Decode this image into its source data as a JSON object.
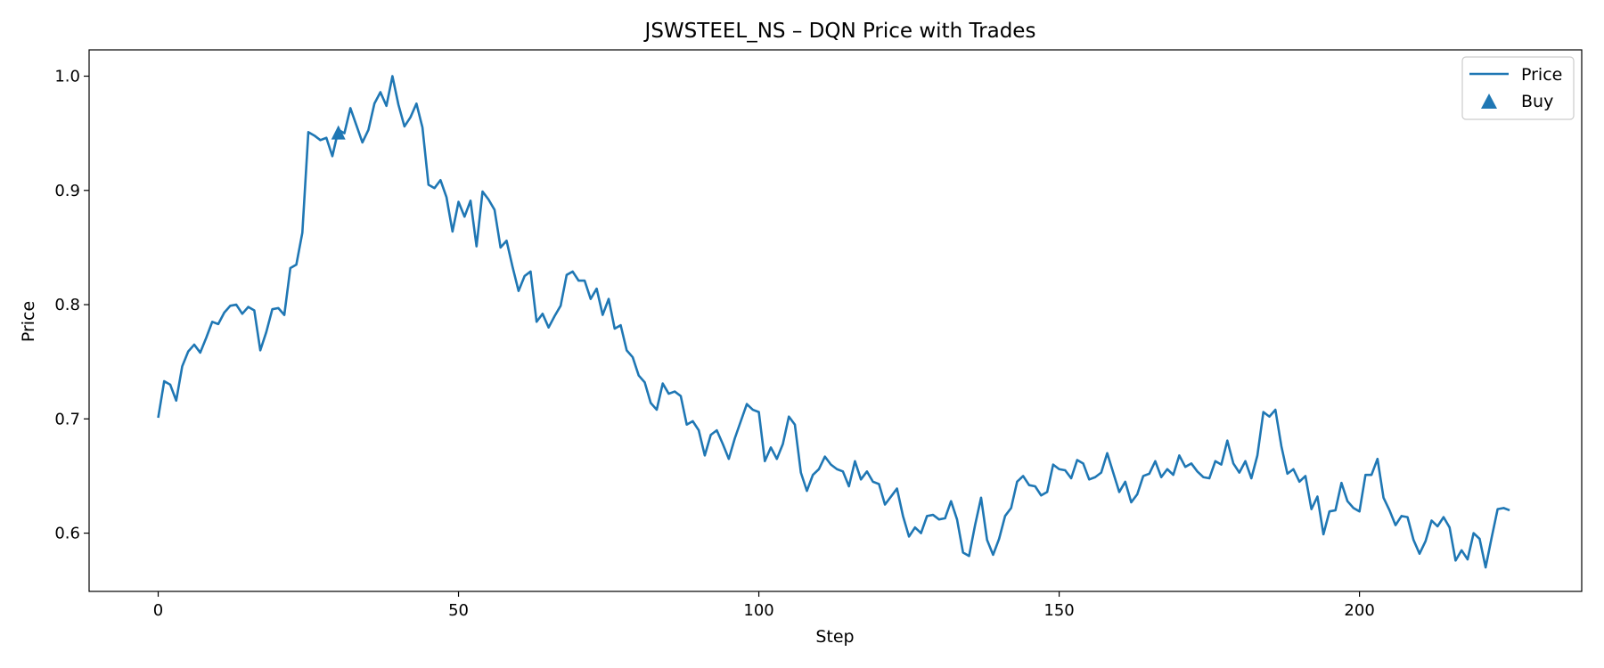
{
  "chart_data": {
    "type": "line",
    "title": "JSWSTEEL_NS – DQN Price with Trades",
    "xlabel": "Step",
    "ylabel": "Price",
    "xlim": [
      -11.5,
      237
    ],
    "ylim": [
      0.549,
      1.023
    ],
    "xticks": [
      0,
      50,
      100,
      150,
      200
    ],
    "yticks": [
      0.6,
      0.7,
      0.8,
      0.9,
      1.0
    ],
    "xtick_labels": [
      "0",
      "50",
      "100",
      "150",
      "200"
    ],
    "ytick_labels": [
      "0.6",
      "0.7",
      "0.8",
      "0.9",
      "1.0"
    ],
    "grid": false,
    "legend_position": "top-right",
    "series": [
      {
        "name": "Price",
        "kind": "line",
        "color": "#1f77b4",
        "x": [
          0,
          1,
          2,
          3,
          4,
          5,
          6,
          7,
          8,
          9,
          10,
          11,
          12,
          13,
          14,
          15,
          16,
          17,
          18,
          19,
          20,
          21,
          22,
          23,
          24,
          25,
          26,
          27,
          28,
          29,
          30,
          31,
          32,
          33,
          34,
          35,
          36,
          37,
          38,
          39,
          40,
          41,
          42,
          43,
          44,
          45,
          46,
          47,
          48,
          49,
          50,
          51,
          52,
          53,
          54,
          55,
          56,
          57,
          58,
          59,
          60,
          61,
          62,
          63,
          64,
          65,
          66,
          67,
          68,
          69,
          70,
          71,
          72,
          73,
          74,
          75,
          76,
          77,
          78,
          79,
          80,
          81,
          82,
          83,
          84,
          85,
          86,
          87,
          88,
          89,
          90,
          91,
          92,
          93,
          94,
          95,
          96,
          97,
          98,
          99,
          100,
          101,
          102,
          103,
          104,
          105,
          106,
          107,
          108,
          109,
          110,
          111,
          112,
          113,
          114,
          115,
          116,
          117,
          118,
          119,
          120,
          121,
          122,
          123,
          124,
          125,
          126,
          127,
          128,
          129,
          130,
          131,
          132,
          133,
          134,
          135,
          136,
          137,
          138,
          139,
          140,
          141,
          142,
          143,
          144,
          145,
          146,
          147,
          148,
          149,
          150,
          151,
          152,
          153,
          154,
          155,
          156,
          157,
          158,
          159,
          160,
          161,
          162,
          163,
          164,
          165,
          166,
          167,
          168,
          169,
          170,
          171,
          172,
          173,
          174,
          175,
          176,
          177,
          178,
          179,
          180,
          181,
          182,
          183,
          184,
          185,
          186,
          187,
          188,
          189,
          190,
          191,
          192,
          193,
          194,
          195,
          196,
          197,
          198,
          199,
          200,
          201,
          202,
          203,
          204,
          205,
          206,
          207,
          208,
          209,
          210,
          211,
          212,
          213,
          214,
          215,
          216,
          217,
          218,
          219,
          220,
          221,
          222,
          223,
          224,
          225
        ],
        "values": [
          0.701,
          0.733,
          0.73,
          0.716,
          0.746,
          0.759,
          0.765,
          0.758,
          0.771,
          0.785,
          0.783,
          0.793,
          0.799,
          0.8,
          0.792,
          0.798,
          0.795,
          0.76,
          0.776,
          0.796,
          0.797,
          0.791,
          0.832,
          0.835,
          0.863,
          0.951,
          0.948,
          0.944,
          0.946,
          0.93,
          0.953,
          0.95,
          0.972,
          0.957,
          0.942,
          0.953,
          0.976,
          0.986,
          0.974,
          1.0,
          0.975,
          0.956,
          0.964,
          0.976,
          0.955,
          0.905,
          0.902,
          0.909,
          0.894,
          0.864,
          0.89,
          0.877,
          0.891,
          0.851,
          0.899,
          0.892,
          0.883,
          0.85,
          0.856,
          0.833,
          0.812,
          0.825,
          0.829,
          0.785,
          0.792,
          0.78,
          0.79,
          0.799,
          0.826,
          0.829,
          0.821,
          0.821,
          0.805,
          0.814,
          0.791,
          0.805,
          0.779,
          0.782,
          0.76,
          0.754,
          0.738,
          0.732,
          0.714,
          0.708,
          0.731,
          0.722,
          0.724,
          0.72,
          0.695,
          0.698,
          0.69,
          0.668,
          0.686,
          0.69,
          0.678,
          0.665,
          0.683,
          0.698,
          0.713,
          0.708,
          0.706,
          0.663,
          0.675,
          0.665,
          0.678,
          0.702,
          0.695,
          0.653,
          0.637,
          0.651,
          0.656,
          0.667,
          0.66,
          0.656,
          0.654,
          0.641,
          0.663,
          0.647,
          0.654,
          0.645,
          0.643,
          0.625,
          0.632,
          0.639,
          0.615,
          0.597,
          0.605,
          0.6,
          0.615,
          0.616,
          0.612,
          0.613,
          0.628,
          0.612,
          0.583,
          0.58,
          0.607,
          0.631,
          0.594,
          0.581,
          0.595,
          0.615,
          0.622,
          0.645,
          0.65,
          0.642,
          0.641,
          0.633,
          0.636,
          0.66,
          0.656,
          0.655,
          0.648,
          0.664,
          0.661,
          0.647,
          0.649,
          0.653,
          0.67,
          0.653,
          0.636,
          0.645,
          0.627,
          0.634,
          0.65,
          0.652,
          0.663,
          0.649,
          0.656,
          0.651,
          0.668,
          0.658,
          0.661,
          0.654,
          0.649,
          0.648,
          0.663,
          0.66,
          0.681,
          0.661,
          0.653,
          0.663,
          0.648,
          0.668,
          0.706,
          0.702,
          0.708,
          0.676,
          0.652,
          0.656,
          0.645,
          0.65,
          0.621,
          0.632,
          0.599,
          0.619,
          0.62,
          0.644,
          0.628,
          0.622,
          0.619,
          0.651,
          0.651,
          0.665,
          0.631,
          0.62,
          0.607,
          0.615,
          0.614,
          0.594,
          0.582,
          0.593,
          0.611,
          0.606,
          0.614,
          0.605,
          0.576,
          0.585,
          0.577,
          0.6,
          0.595,
          0.57,
          0.596,
          0.621,
          0.622,
          0.62
        ]
      },
      {
        "name": "Buy",
        "kind": "scatter",
        "marker": "triangle-up",
        "color": "#1f77b4",
        "x": [
          30
        ],
        "values": [
          0.95
        ]
      }
    ]
  }
}
